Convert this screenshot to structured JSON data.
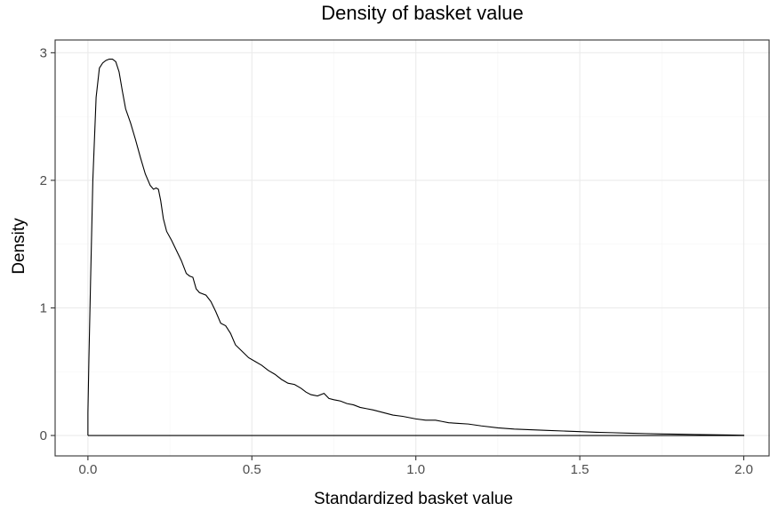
{
  "chart_data": {
    "type": "line",
    "title": "Density of basket value",
    "xlabel": "Standardized basket value",
    "ylabel": "Density",
    "xlim": [
      -0.1,
      2.08
    ],
    "ylim": [
      -0.16,
      3.1
    ],
    "xticks": [
      0.0,
      0.5,
      1.0,
      1.5,
      2.0
    ],
    "xtick_labels": [
      "0.0",
      "0.5",
      "1.0",
      "1.5",
      "2.0"
    ],
    "yticks": [
      0,
      1,
      2,
      3
    ],
    "ytick_labels": [
      "0",
      "1",
      "2",
      "3"
    ],
    "grid": true,
    "legend": "none",
    "colors": {
      "line": "#000000",
      "grid": "#ebebeb",
      "background": "#ffffff"
    },
    "series": [
      {
        "x": [
          0.0,
          0.0,
          0.003,
          0.008,
          0.015,
          0.025,
          0.035,
          0.045,
          0.055,
          0.065,
          0.075,
          0.085,
          0.095,
          0.105,
          0.115,
          0.13,
          0.145,
          0.16,
          0.175,
          0.19,
          0.2,
          0.208,
          0.215,
          0.222,
          0.23,
          0.24,
          0.255,
          0.27,
          0.285,
          0.3,
          0.31,
          0.32,
          0.33,
          0.34,
          0.36,
          0.375,
          0.39,
          0.405,
          0.42,
          0.435,
          0.45,
          0.47,
          0.49,
          0.51,
          0.53,
          0.55,
          0.57,
          0.59,
          0.61,
          0.63,
          0.65,
          0.665,
          0.68,
          0.7,
          0.72,
          0.735,
          0.75,
          0.77,
          0.79,
          0.81,
          0.83,
          0.85,
          0.87,
          0.9,
          0.93,
          0.96,
          1.0,
          1.03,
          1.06,
          1.08,
          1.1,
          1.13,
          1.16,
          1.2,
          1.25,
          1.3,
          1.35,
          1.4,
          1.45,
          1.5,
          1.55,
          1.6,
          1.65,
          1.7,
          1.75,
          1.8,
          1.85,
          1.9,
          1.95,
          2.0,
          2.0,
          0.0
        ],
        "y": [
          0.0,
          0.18,
          0.6,
          1.2,
          2.0,
          2.65,
          2.88,
          2.92,
          2.94,
          2.95,
          2.95,
          2.93,
          2.85,
          2.7,
          2.56,
          2.45,
          2.32,
          2.18,
          2.05,
          1.96,
          1.93,
          1.94,
          1.93,
          1.84,
          1.7,
          1.6,
          1.53,
          1.45,
          1.37,
          1.27,
          1.25,
          1.24,
          1.15,
          1.12,
          1.1,
          1.05,
          0.97,
          0.88,
          0.86,
          0.8,
          0.71,
          0.66,
          0.61,
          0.58,
          0.55,
          0.51,
          0.48,
          0.44,
          0.41,
          0.4,
          0.37,
          0.34,
          0.32,
          0.31,
          0.33,
          0.29,
          0.28,
          0.27,
          0.25,
          0.24,
          0.22,
          0.21,
          0.2,
          0.18,
          0.16,
          0.15,
          0.13,
          0.12,
          0.12,
          0.11,
          0.1,
          0.095,
          0.09,
          0.075,
          0.06,
          0.05,
          0.045,
          0.04,
          0.035,
          0.03,
          0.025,
          0.022,
          0.018,
          0.015,
          0.012,
          0.01,
          0.008,
          0.006,
          0.004,
          0.002,
          0.0,
          0.0
        ]
      }
    ]
  }
}
